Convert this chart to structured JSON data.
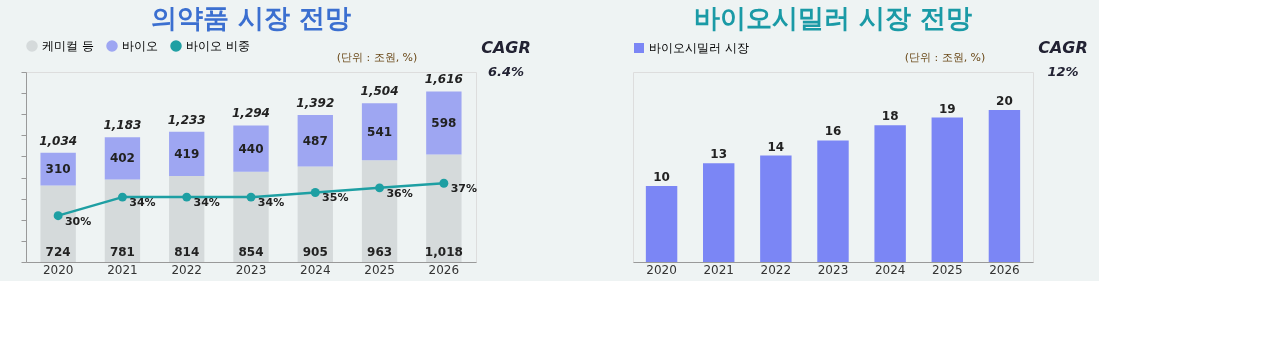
{
  "chart_data": [
    {
      "type": "bar",
      "title": "의약품 시장 전망",
      "stacked": true,
      "legend": "top",
      "tick_labels": "x",
      "grid": false,
      "marker": "circle",
      "categories": [
        "2020",
        "2021",
        "2022",
        "2023",
        "2024",
        "2025",
        "2026"
      ],
      "series": [
        {
          "name": "케미컬 등",
          "color": "#d5dadb",
          "values": [
            724,
            781,
            814,
            854,
            905,
            963,
            1018
          ],
          "value_labels": [
            "724",
            "781",
            "814",
            "854",
            "905",
            "963",
            "1,018"
          ]
        },
        {
          "name": "바이오",
          "color": "#9ea6f2",
          "values": [
            310,
            402,
            419,
            440,
            487,
            541,
            598
          ],
          "value_labels": [
            "310",
            "402",
            "419",
            "440",
            "487",
            "541",
            "598"
          ]
        },
        {
          "name": "바이오 비중",
          "type": "line",
          "axis": "y2",
          "color": "#1e9fa3",
          "values": [
            30,
            34,
            34,
            34,
            35,
            36,
            37
          ],
          "value_labels": [
            "30%",
            "34%",
            "34%",
            "34%",
            "35%",
            "36%",
            "37%"
          ]
        }
      ],
      "totals": [
        "1,034",
        "1,183",
        "1,233",
        "1,294",
        "1,392",
        "1,504",
        "1,616"
      ],
      "ylim": [
        0,
        1800
      ],
      "y2lim": [
        20,
        61
      ],
      "annotations": [
        "(단위 : 조원, %)",
        "CAGR",
        "6.4%"
      ]
    },
    {
      "type": "bar",
      "title": "바이오시밀러 시장 전망",
      "legend": "top",
      "tick_labels": "x",
      "grid": false,
      "data_labels": true,
      "categories": [
        "2020",
        "2021",
        "2022",
        "2023",
        "2024",
        "2025",
        "2026"
      ],
      "series": [
        {
          "name": "바이오시밀러 시장",
          "color": "#7b86f5",
          "values": [
            10,
            13,
            14,
            16,
            18,
            19,
            20
          ]
        }
      ],
      "ylim": [
        0,
        25
      ],
      "annotations": [
        "(단위 : 조원, %)",
        "CAGR",
        "12%"
      ]
    }
  ]
}
